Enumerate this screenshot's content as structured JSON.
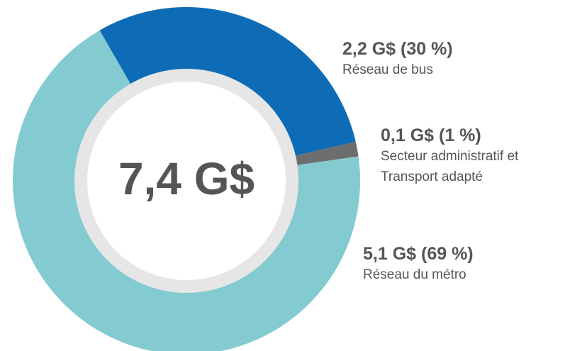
{
  "chart_data": {
    "type": "donut",
    "center_label": "7,4 G$",
    "categories": [
      "Réseau de bus",
      "Secteur administratif et Transport adapté",
      "Réseau du métro"
    ],
    "values": [
      2.2,
      0.1,
      5.1
    ],
    "value_labels": [
      "2,2 G$ (30 %)",
      "0,1 G$ (1 %)",
      "5,1 G$ (69 %)"
    ],
    "colors": [
      "#0e6cb6",
      "#6d6d6d",
      "#84cad1"
    ]
  }
}
